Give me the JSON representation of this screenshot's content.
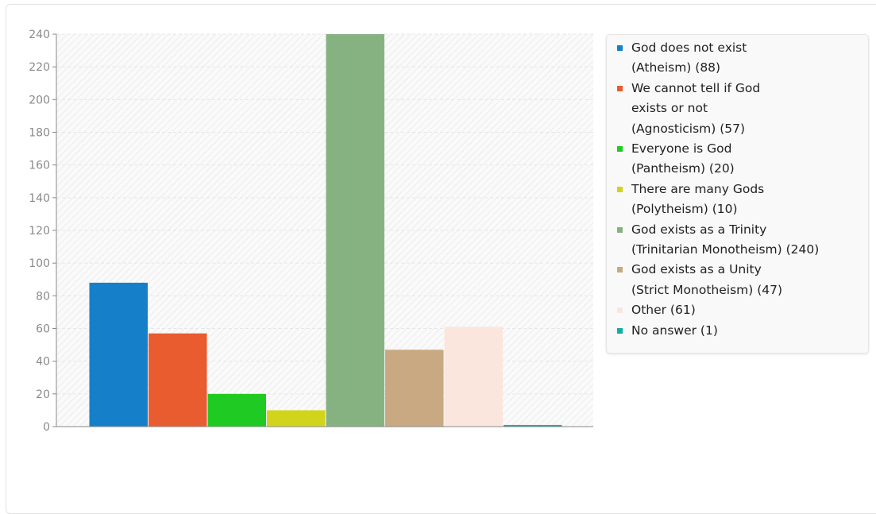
{
  "colors": {
    "axis": "#8a8a8a",
    "grid": "#e6e6e6",
    "hatch": "#ececec"
  },
  "chart_data": {
    "type": "bar",
    "title": "",
    "xlabel": "",
    "ylabel": "",
    "ylim": [
      0,
      240
    ],
    "yticks": [
      0,
      20,
      40,
      60,
      80,
      100,
      120,
      140,
      160,
      180,
      200,
      220,
      240
    ],
    "grid": true,
    "legend_position": "right",
    "series": [
      {
        "name": "God does not exist (Atheism)",
        "value": 88,
        "color": "#1580c9",
        "legend_label": "God does not exist\n(Atheism) (88)"
      },
      {
        "name": "We cannot tell if God exists or not (Agnosticism)",
        "value": 57,
        "color": "#e85c30",
        "legend_label": "We cannot tell if God\nexists or not\n(Agnosticism) (57)"
      },
      {
        "name": "Everyone is God (Pantheism)",
        "value": 20,
        "color": "#1fcb23",
        "legend_label": "Everyone is God\n(Pantheism) (20)"
      },
      {
        "name": "There are many Gods (Polytheism)",
        "value": 10,
        "color": "#d2d41c",
        "legend_label": "There are many Gods\n(Polytheism) (10)"
      },
      {
        "name": "God exists as a Trinity (Trinitarian Monotheism)",
        "value": 240,
        "color": "#86b281",
        "legend_label": "God exists as a Trinity\n(Trinitarian Monotheism) (240)"
      },
      {
        "name": "God exists as a Unity (Strict Monotheism)",
        "value": 47,
        "color": "#c8a981",
        "legend_label": "God exists as a Unity\n(Strict Monotheism) (47)"
      },
      {
        "name": "Other",
        "value": 61,
        "color": "#fbe6dd",
        "legend_label": "Other (61)"
      },
      {
        "name": "No answer",
        "value": 1,
        "color": "#17aba5",
        "legend_label": "No answer (1)"
      }
    ]
  }
}
